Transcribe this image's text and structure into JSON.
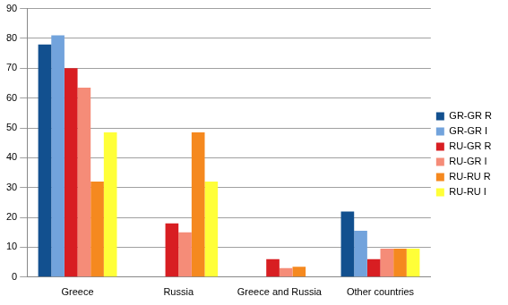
{
  "chart_data": {
    "type": "bar",
    "categories": [
      "Greece",
      "Russia",
      "Greece and Russia",
      "Other countries"
    ],
    "series": [
      {
        "name": "GR-GR R",
        "color": "#12508f",
        "values": [
          78,
          0,
          0,
          22
        ]
      },
      {
        "name": "GR-GR I",
        "color": "#72a3dc",
        "values": [
          81,
          0,
          0,
          15.5
        ]
      },
      {
        "name": "RU-GR R",
        "color": "#d81e22",
        "values": [
          70,
          18,
          6,
          6
        ]
      },
      {
        "name": "RU-GR I",
        "color": "#f58c78",
        "values": [
          63.5,
          15,
          3,
          9.5
        ]
      },
      {
        "name": "RU-RU R",
        "color": "#f5891f",
        "values": [
          32,
          48.5,
          3.5,
          9.5
        ]
      },
      {
        "name": "RU-RU I",
        "color": "#ffff38",
        "values": [
          48.5,
          32,
          0,
          9.5
        ]
      }
    ],
    "ylim": [
      0,
      90
    ],
    "yticks": [
      0,
      10,
      20,
      30,
      40,
      50,
      60,
      70,
      80,
      90
    ],
    "grid": true,
    "legend": "right"
  }
}
